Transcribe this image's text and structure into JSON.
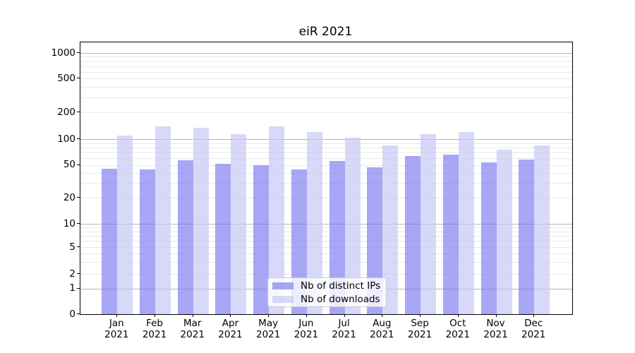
{
  "chart_data": {
    "type": "bar",
    "title": "eiR 2021",
    "categories": [
      "Jan",
      "Feb",
      "Mar",
      "Apr",
      "May",
      "Jun",
      "Jul",
      "Aug",
      "Sep",
      "Oct",
      "Nov",
      "Dec"
    ],
    "category_year": "2021",
    "series": [
      {
        "name": "Nb of distinct IPs",
        "color": "rgba(118,118,240,0.64)",
        "values": [
          45,
          44,
          57,
          51,
          50,
          44,
          56,
          47,
          64,
          66,
          53,
          58
        ]
      },
      {
        "name": "Nb of downloads",
        "color": "rgba(198,198,246,0.68)",
        "values": [
          110,
          140,
          135,
          113,
          140,
          119,
          103,
          85,
          113,
          120,
          75,
          85
        ]
      }
    ],
    "yticks": [
      0,
      1,
      2,
      5,
      10,
      20,
      50,
      100,
      200,
      500,
      1000
    ],
    "yscale": "symlog",
    "ylim": [
      0,
      1000
    ],
    "xlabel": "",
    "ylabel": "",
    "grid": {
      "major_color": "#b4b4b4",
      "minor_color": "#e9e9e9",
      "major_values": [
        1,
        10,
        100,
        1000
      ]
    },
    "legend_position": "lower center"
  }
}
